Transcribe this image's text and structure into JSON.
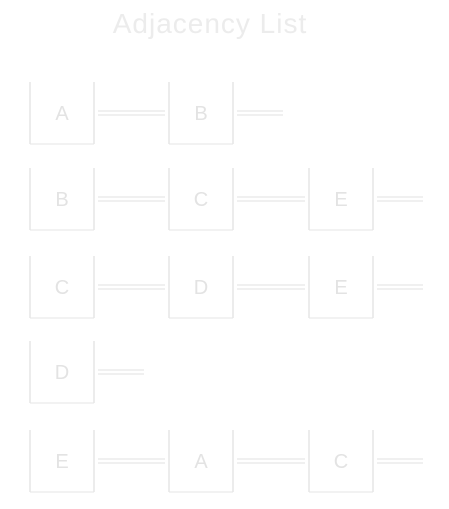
{
  "title": "Adjacency List",
  "colors": {
    "ink": "#e6e6e6",
    "text": "#e3e3e3",
    "background": "#ffffff"
  },
  "rows": [
    {
      "head": "A",
      "neighbors": [
        "B"
      ]
    },
    {
      "head": "B",
      "neighbors": [
        "C",
        "E"
      ]
    },
    {
      "head": "C",
      "neighbors": [
        "D",
        "E"
      ]
    },
    {
      "head": "D",
      "neighbors": []
    },
    {
      "head": "E",
      "neighbors": [
        "A",
        "C"
      ]
    }
  ]
}
